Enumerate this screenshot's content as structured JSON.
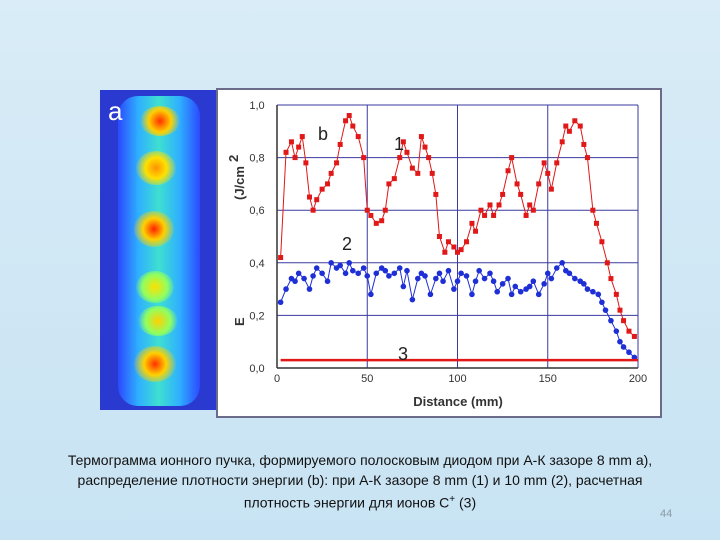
{
  "thermogram": {
    "label": "a"
  },
  "chart_data": {
    "type": "scatter",
    "panel_label": "b",
    "xlabel": "Distance (mm)",
    "ylabel": "E",
    "ylabel_unit": "(J/cm",
    "ylabel_exp": "2",
    "xlim": [
      0,
      200
    ],
    "ylim": [
      0,
      1.0
    ],
    "xticks": [
      0,
      50,
      100,
      150,
      200
    ],
    "yticks": [
      0.0,
      0.2,
      0.4,
      0.6,
      0.8,
      1.0
    ],
    "xtick_labels": [
      "0",
      "50",
      "100",
      "150",
      "200"
    ],
    "ytick_labels": [
      "0,0",
      "0,2",
      "0,4",
      "0,6",
      "0,8",
      "1,0"
    ],
    "grid": true,
    "series": [
      {
        "name": "1",
        "color": "#e01818",
        "marker": "square",
        "x": [
          2,
          5,
          8,
          10,
          12,
          14,
          16,
          18,
          20,
          22,
          25,
          28,
          30,
          33,
          35,
          38,
          40,
          42,
          45,
          48,
          50,
          52,
          55,
          58,
          60,
          62,
          65,
          68,
          70,
          72,
          75,
          78,
          80,
          82,
          84,
          86,
          88,
          90,
          93,
          95,
          98,
          100,
          102,
          105,
          108,
          110,
          113,
          115,
          118,
          120,
          123,
          125,
          128,
          130,
          133,
          135,
          138,
          140,
          142,
          145,
          148,
          150,
          152,
          155,
          158,
          160,
          162,
          165,
          168,
          170,
          172,
          175,
          177,
          180,
          183,
          185,
          188,
          190,
          192,
          195,
          198
        ],
        "y": [
          0.42,
          0.82,
          0.86,
          0.8,
          0.84,
          0.88,
          0.78,
          0.65,
          0.6,
          0.64,
          0.68,
          0.7,
          0.74,
          0.78,
          0.85,
          0.94,
          0.96,
          0.92,
          0.88,
          0.8,
          0.6,
          0.58,
          0.55,
          0.56,
          0.6,
          0.7,
          0.72,
          0.8,
          0.86,
          0.82,
          0.76,
          0.74,
          0.88,
          0.84,
          0.8,
          0.74,
          0.66,
          0.5,
          0.44,
          0.48,
          0.46,
          0.44,
          0.45,
          0.48,
          0.55,
          0.52,
          0.6,
          0.58,
          0.62,
          0.58,
          0.62,
          0.66,
          0.75,
          0.8,
          0.7,
          0.66,
          0.58,
          0.62,
          0.6,
          0.7,
          0.78,
          0.74,
          0.68,
          0.78,
          0.86,
          0.92,
          0.9,
          0.94,
          0.92,
          0.85,
          0.8,
          0.6,
          0.55,
          0.48,
          0.4,
          0.34,
          0.28,
          0.22,
          0.18,
          0.14,
          0.12
        ]
      },
      {
        "name": "2",
        "color": "#1e2fd6",
        "marker": "circle",
        "x": [
          2,
          5,
          8,
          10,
          12,
          15,
          18,
          20,
          22,
          25,
          28,
          30,
          33,
          35,
          38,
          40,
          42,
          45,
          48,
          50,
          52,
          55,
          58,
          60,
          62,
          65,
          68,
          70,
          72,
          75,
          78,
          80,
          82,
          85,
          88,
          90,
          92,
          95,
          98,
          100,
          102,
          105,
          108,
          110,
          112,
          115,
          118,
          120,
          122,
          125,
          128,
          130,
          132,
          135,
          138,
          140,
          142,
          145,
          148,
          150,
          152,
          155,
          158,
          160,
          162,
          165,
          168,
          170,
          172,
          175,
          178,
          180,
          182,
          185,
          188,
          190,
          192,
          195,
          198
        ],
        "y": [
          0.25,
          0.3,
          0.34,
          0.33,
          0.36,
          0.34,
          0.3,
          0.35,
          0.38,
          0.36,
          0.33,
          0.4,
          0.38,
          0.39,
          0.36,
          0.4,
          0.37,
          0.36,
          0.38,
          0.35,
          0.28,
          0.36,
          0.38,
          0.37,
          0.35,
          0.36,
          0.38,
          0.31,
          0.37,
          0.26,
          0.34,
          0.36,
          0.35,
          0.28,
          0.34,
          0.36,
          0.33,
          0.37,
          0.3,
          0.33,
          0.36,
          0.35,
          0.28,
          0.33,
          0.37,
          0.34,
          0.36,
          0.33,
          0.29,
          0.32,
          0.34,
          0.28,
          0.31,
          0.29,
          0.3,
          0.31,
          0.33,
          0.28,
          0.32,
          0.36,
          0.34,
          0.38,
          0.4,
          0.37,
          0.36,
          0.34,
          0.33,
          0.32,
          0.3,
          0.29,
          0.28,
          0.25,
          0.22,
          0.18,
          0.14,
          0.1,
          0.08,
          0.06,
          0.04
        ]
      },
      {
        "name": "3",
        "color": "#e01818",
        "marker": "line",
        "x": [
          2,
          200
        ],
        "y": [
          0.03,
          0.03
        ]
      }
    ]
  },
  "caption": {
    "line1": "Термограмма ионного пучка, формируемого полосковым диодом при А-К зазоре 8 mm а),",
    "line2": "распределение плотности энергии (b): при А-К зазоре 8 mm (1) и 10 mm (2), расчетная",
    "line3_pre": "плотность энергии для ионов C",
    "line3_sup": "+",
    "line3_post": " (3)"
  },
  "page_number": "44"
}
